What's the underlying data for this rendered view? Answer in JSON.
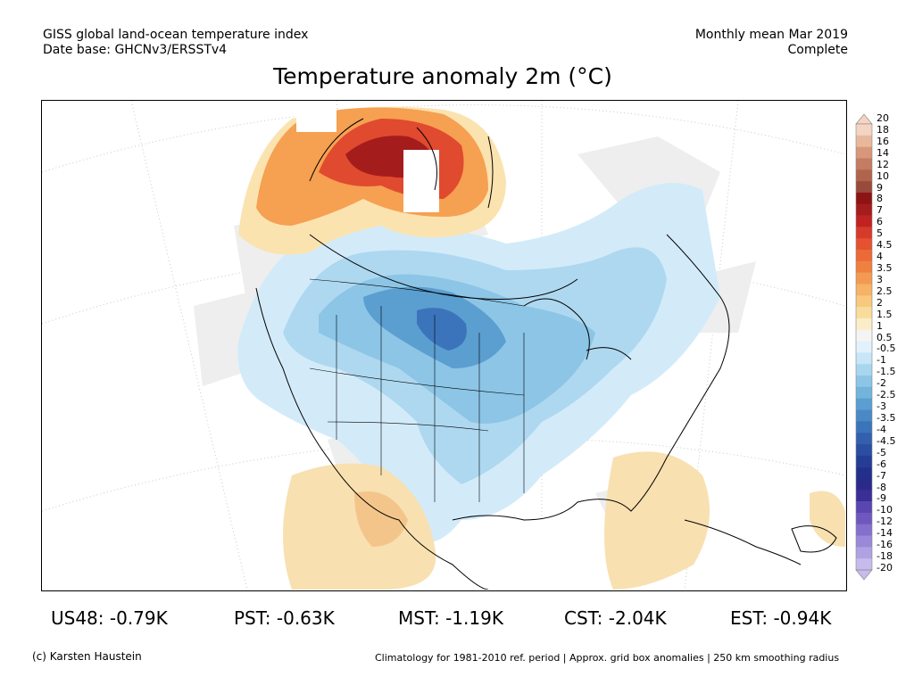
{
  "header": {
    "left_line1": "GISS global land-ocean temperature index",
    "left_line2": "Date base: GHCNv3/ERSSTv4",
    "right_line1": "Monthly mean Mar 2019",
    "right_line2": "Complete"
  },
  "title": "Temperature anomaly 2m (°C)",
  "colorbar": {
    "labels": [
      "20",
      "18",
      "16",
      "14",
      "12",
      "10",
      "9",
      "8",
      "7",
      "6",
      "5",
      "4.5",
      "4",
      "3.5",
      "3",
      "2.5",
      "2",
      "1.5",
      "1",
      "0.5",
      "-0.5",
      "-1",
      "-1.5",
      "-2",
      "-2.5",
      "-3",
      "-3.5",
      "-4",
      "-4.5",
      "-5",
      "-6",
      "-7",
      "-8",
      "-9",
      "-10",
      "-12",
      "-14",
      "-16",
      "-18",
      "-20"
    ],
    "colors": [
      "#f4d4c2",
      "#e9b89c",
      "#d8977a",
      "#c47c62",
      "#b0644e",
      "#9a4a3a",
      "#8c1414",
      "#a51c1c",
      "#c02222",
      "#d73a2a",
      "#e45232",
      "#eb6a38",
      "#f08040",
      "#f39a52",
      "#f6b266",
      "#f8c87e",
      "#f9dc9c",
      "#fbedc8",
      "#f4f4f4",
      "#e2f1fb",
      "#c7e6f7",
      "#a9d6ef",
      "#8cc5e6",
      "#73b4dc",
      "#5b9ed0",
      "#4a89c6",
      "#3c74bb",
      "#3260ae",
      "#2b4ea2",
      "#263d96",
      "#23308b",
      "#2a2a8a",
      "#3b2e96",
      "#5a46b0",
      "#6e58c0",
      "#8470cc",
      "#9a88d8",
      "#b0a2e2",
      "#c6bcec"
    ]
  },
  "stats": {
    "us48": "US48: -0.79K",
    "pst": "PST: -0.63K",
    "mst": "MST: -1.19K",
    "cst": "CST: -2.04K",
    "est": "EST: -0.94K"
  },
  "footer": {
    "credit": "(c) Karsten Haustein",
    "note": "Climatology for 1981-2010 ref. period | Approx. grid box anomalies | 250 km smoothing radius"
  }
}
